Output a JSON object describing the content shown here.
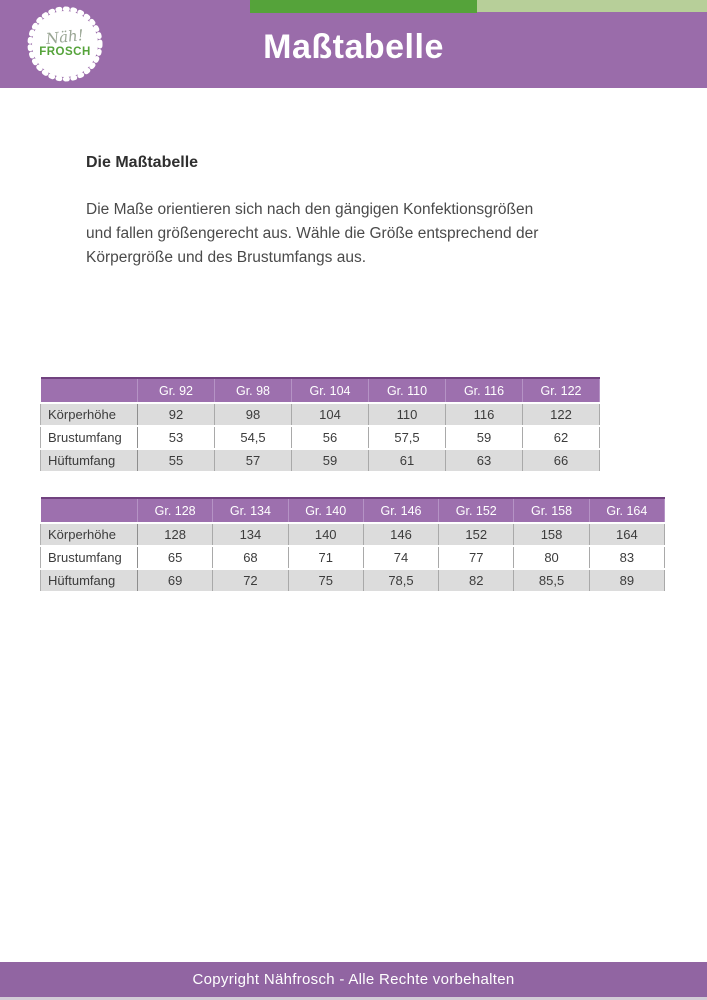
{
  "colors": {
    "header_purple": "#9a6caa",
    "footer_purple": "#9165a2",
    "dark_green": "#55a33a",
    "light_green": "#b7cf99",
    "table_purple": "#9d70ae",
    "logo_green": "#55a33a",
    "row_gray": "#dcdcdc",
    "text_dark": "#3c3c3c"
  },
  "header": {
    "title": "Maßtabelle",
    "logo": {
      "script_text": "Näh!",
      "brand_text": "FROSCH"
    }
  },
  "body": {
    "heading": "Die Maßtabelle",
    "paragraph_lines": [
      "Die Maße orientieren sich nach den gängigen Konfektionsgrößen",
      "und fallen größengerecht aus. Wähle die Größe entsprechend der",
      "Körpergröße und des Brustumfangs aus."
    ]
  },
  "tables": [
    {
      "columns": [
        "",
        "Gr. 92",
        "Gr. 98",
        "Gr. 104",
        "Gr. 110",
        "Gr. 116",
        "Gr. 122"
      ],
      "rows": [
        {
          "label": "Körperhöhe",
          "values": [
            "92",
            "98",
            "104",
            "110",
            "116",
            "122"
          ],
          "shade": "gray"
        },
        {
          "label": "Brustumfang",
          "values": [
            "53",
            "54,5",
            "56",
            "57,5",
            "59",
            "62"
          ],
          "shade": "white"
        },
        {
          "label": "Hüftumfang",
          "values": [
            "55",
            "57",
            "59",
            "61",
            "63",
            "66"
          ],
          "shade": "gray"
        }
      ]
    },
    {
      "columns": [
        "",
        "Gr. 128",
        "Gr. 134",
        "Gr. 140",
        "Gr. 146",
        "Gr. 152",
        "Gr. 158",
        "Gr. 164"
      ],
      "rows": [
        {
          "label": "Körperhöhe",
          "values": [
            "128",
            "134",
            "140",
            "146",
            "152",
            "158",
            "164"
          ],
          "shade": "gray"
        },
        {
          "label": "Brustumfang",
          "values": [
            "65",
            "68",
            "71",
            "74",
            "77",
            "80",
            "83"
          ],
          "shade": "white"
        },
        {
          "label": "Hüftumfang",
          "values": [
            "69",
            "72",
            "75",
            "78,5",
            "82",
            "85,5",
            "89"
          ],
          "shade": "gray"
        }
      ]
    }
  ],
  "footer": {
    "text": "Copyright Nähfrosch - Alle Rechte vorbehalten"
  }
}
